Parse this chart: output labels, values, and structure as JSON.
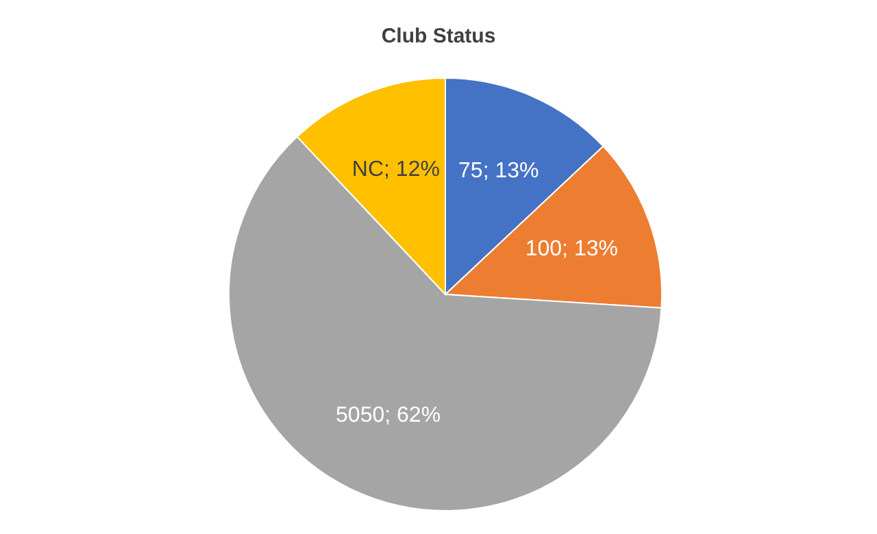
{
  "chart_data": {
    "type": "pie",
    "title": "Club Status",
    "categories": [
      "75",
      "100",
      "5050",
      "NC"
    ],
    "values": [
      13,
      13,
      62,
      12
    ],
    "colors": [
      "#4472c4",
      "#ed7d31",
      "#a5a5a5",
      "#ffc000"
    ],
    "value_labels": [
      "13%",
      "13%",
      "62%",
      "12%"
    ],
    "legend": false
  }
}
